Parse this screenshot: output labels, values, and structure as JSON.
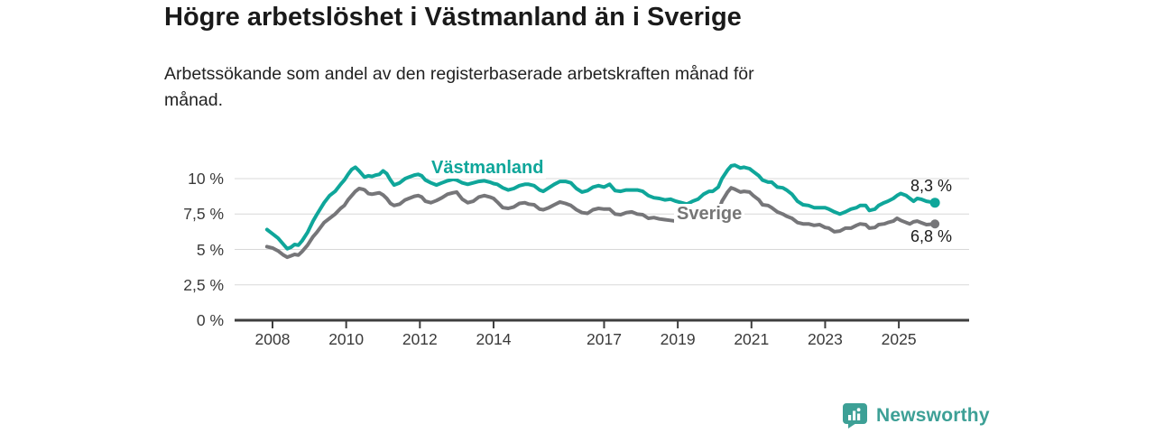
{
  "chart_data": {
    "type": "line",
    "title": "Högre arbetslöshet i Västmanland än i Sverige",
    "subtitle": "Arbetssökande som andel av den registerbaserade arbetskraften månad för\nmånad.",
    "unit": "%",
    "grid": "horizontal",
    "ylim": [
      0,
      11.5
    ],
    "xlim": [
      2007.8,
      2026.9
    ],
    "y_ticks": [
      0,
      2.5,
      5,
      7.5,
      10
    ],
    "y_tick_labels": [
      "0 %",
      "2,5 %",
      "5 %",
      "7,5 %",
      "10 %"
    ],
    "x_ticks": [
      2008,
      2010,
      2012,
      2014,
      2017,
      2019,
      2021,
      2023,
      2025
    ],
    "x_tick_labels": [
      "2008",
      "2010",
      "2012",
      "2014",
      "2017",
      "2019",
      "2021",
      "2023",
      "2025"
    ],
    "x": [
      2007.85,
      2008.0,
      2008.15,
      2008.3,
      2008.4,
      2008.5,
      2008.6,
      2008.7,
      2008.8,
      2008.95,
      2009.1,
      2009.2,
      2009.4,
      2009.55,
      2009.7,
      2009.85,
      2009.95,
      2010.05,
      2010.15,
      2010.25,
      2010.35,
      2010.45,
      2010.5,
      2010.6,
      2010.7,
      2010.8,
      2010.9,
      2011.0,
      2011.1,
      2011.2,
      2011.3,
      2011.45,
      2011.6,
      2011.7,
      2011.85,
      2011.95,
      2012.05,
      2012.15,
      2012.3,
      2012.45,
      2012.6,
      2012.75,
      2012.9,
      2013.0,
      2013.15,
      2013.3,
      2013.45,
      2013.6,
      2013.75,
      2013.9,
      2014.0,
      2014.1,
      2014.25,
      2014.4,
      2014.55,
      2014.7,
      2014.85,
      2014.95,
      2015.1,
      2015.25,
      2015.35,
      2015.5,
      2015.65,
      2015.8,
      2015.95,
      2016.1,
      2016.25,
      2016.4,
      2016.55,
      2016.7,
      2016.85,
      2017.0,
      2017.15,
      2017.3,
      2017.45,
      2017.6,
      2017.75,
      2017.9,
      2018.05,
      2018.2,
      2018.35,
      2018.5,
      2018.65,
      2018.8,
      2018.95,
      2019.1,
      2019.25,
      2019.4,
      2019.55,
      2019.7,
      2019.85,
      2019.95,
      2020.1,
      2020.2,
      2020.35,
      2020.45,
      2020.55,
      2020.7,
      2020.8,
      2020.95,
      2021.05,
      2021.2,
      2021.3,
      2021.45,
      2021.55,
      2021.7,
      2021.85,
      2021.95,
      2022.1,
      2022.25,
      2022.4,
      2022.55,
      2022.7,
      2022.85,
      2023.0,
      2023.1,
      2023.25,
      2023.4,
      2023.55,
      2023.7,
      2023.85,
      2023.95,
      2024.1,
      2024.2,
      2024.35,
      2024.45,
      2024.6,
      2024.7,
      2024.85,
      2024.95,
      2025.05,
      2025.2,
      2025.3,
      2025.4,
      2025.5,
      2025.6,
      2025.75,
      2025.98
    ],
    "series": [
      {
        "name": "Västmanland",
        "color": "#0fa69a",
        "end_label": "8,3 %",
        "end_value": 8.3,
        "values": [
          6.4,
          6.1,
          5.8,
          5.35,
          5.05,
          5.15,
          5.35,
          5.3,
          5.6,
          6.2,
          7.0,
          7.45,
          8.3,
          8.8,
          9.1,
          9.6,
          9.9,
          10.3,
          10.65,
          10.8,
          10.55,
          10.25,
          10.1,
          10.2,
          10.15,
          10.25,
          10.3,
          10.55,
          10.35,
          9.9,
          9.55,
          9.7,
          10.0,
          10.1,
          10.25,
          10.3,
          10.2,
          9.9,
          9.7,
          9.55,
          9.7,
          9.85,
          9.95,
          9.9,
          9.7,
          9.6,
          9.7,
          9.8,
          9.85,
          9.75,
          9.65,
          9.6,
          9.35,
          9.2,
          9.3,
          9.5,
          9.6,
          9.6,
          9.5,
          9.2,
          9.1,
          9.35,
          9.6,
          9.8,
          9.8,
          9.7,
          9.3,
          9.05,
          9.15,
          9.4,
          9.5,
          9.4,
          9.6,
          9.15,
          9.1,
          9.2,
          9.2,
          9.2,
          9.1,
          8.8,
          8.65,
          8.6,
          8.5,
          8.55,
          8.4,
          8.3,
          8.2,
          8.4,
          8.55,
          8.9,
          9.1,
          9.1,
          9.4,
          10.0,
          10.6,
          10.9,
          10.95,
          10.75,
          10.8,
          10.7,
          10.5,
          10.2,
          9.9,
          9.75,
          9.75,
          9.4,
          9.35,
          9.2,
          8.9,
          8.4,
          8.15,
          8.1,
          7.95,
          7.95,
          7.95,
          7.85,
          7.65,
          7.5,
          7.65,
          7.85,
          7.95,
          8.1,
          8.1,
          7.75,
          7.85,
          8.1,
          8.3,
          8.4,
          8.6,
          8.8,
          8.95,
          8.8,
          8.6,
          8.4,
          8.6,
          8.55,
          8.4,
          8.3
        ]
      },
      {
        "name": "Sverige",
        "color": "#767679",
        "end_label": "6,8 %",
        "end_value": 6.8,
        "values": [
          5.2,
          5.1,
          4.9,
          4.6,
          4.45,
          4.55,
          4.65,
          4.6,
          4.85,
          5.3,
          5.9,
          6.2,
          6.9,
          7.2,
          7.5,
          7.9,
          8.1,
          8.5,
          8.8,
          9.1,
          9.3,
          9.25,
          9.2,
          8.95,
          8.9,
          8.95,
          9.0,
          8.85,
          8.6,
          8.25,
          8.1,
          8.2,
          8.5,
          8.6,
          8.75,
          8.8,
          8.7,
          8.4,
          8.3,
          8.45,
          8.65,
          8.9,
          9.0,
          9.05,
          8.55,
          8.3,
          8.4,
          8.7,
          8.8,
          8.7,
          8.6,
          8.35,
          7.95,
          7.9,
          8.0,
          8.25,
          8.3,
          8.2,
          8.15,
          7.85,
          7.8,
          7.95,
          8.15,
          8.35,
          8.25,
          8.1,
          7.8,
          7.6,
          7.55,
          7.8,
          7.9,
          7.85,
          7.85,
          7.5,
          7.45,
          7.6,
          7.65,
          7.5,
          7.45,
          7.2,
          7.25,
          7.15,
          7.1,
          7.05,
          7.0,
          6.9,
          6.95,
          7.0,
          7.1,
          7.2,
          7.3,
          7.3,
          7.65,
          8.4,
          9.05,
          9.35,
          9.25,
          9.05,
          9.1,
          9.05,
          8.8,
          8.5,
          8.15,
          8.1,
          7.95,
          7.65,
          7.5,
          7.35,
          7.2,
          6.9,
          6.8,
          6.8,
          6.7,
          6.75,
          6.55,
          6.5,
          6.25,
          6.3,
          6.5,
          6.5,
          6.7,
          6.8,
          6.75,
          6.5,
          6.55,
          6.75,
          6.8,
          6.9,
          7.0,
          7.2,
          7.05,
          6.9,
          6.8,
          6.95,
          7.0,
          6.9,
          6.75,
          6.8
        ]
      }
    ]
  },
  "footer": {
    "brand": "Newsworthy"
  },
  "colors": {
    "accent_teal": "#0fa69a",
    "line_gray": "#767679",
    "logo_teal": "#3da096",
    "axis": "#3e3e3e",
    "gridline": "#d8d8d8",
    "title_text": "#1a1a1a",
    "tick_text": "#3a3a3a"
  }
}
